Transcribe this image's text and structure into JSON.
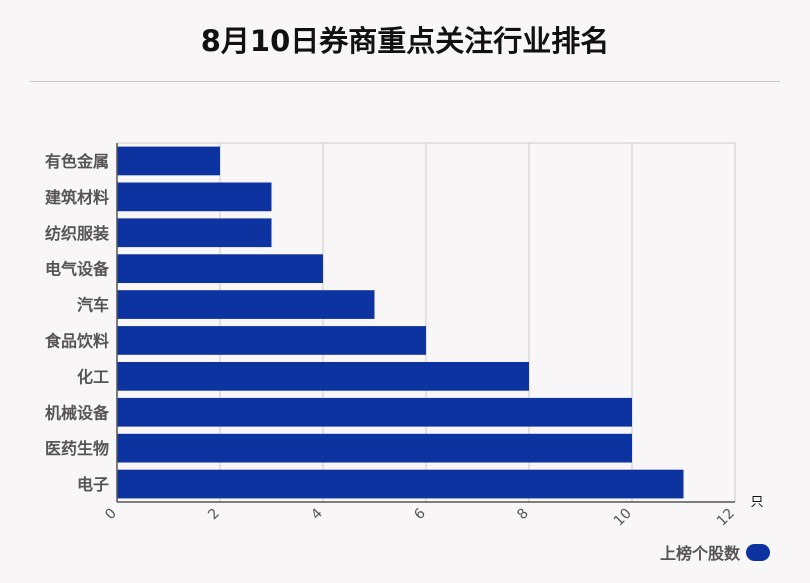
{
  "title": "8月10日券商重点关注行业排名",
  "colors": {
    "bar": "#0d33a0",
    "grid": "#cccccc",
    "axis": "#555555",
    "label": "#555555"
  },
  "chart_data": {
    "type": "bar",
    "orientation": "horizontal",
    "title": "8月10日券商重点关注行业排名",
    "categories": [
      "有色金属",
      "建筑材料",
      "纺织服装",
      "电气设备",
      "汽车",
      "食品饮料",
      "化工",
      "机械设备",
      "医药生物",
      "电子"
    ],
    "series": [
      {
        "name": "上榜个股数",
        "values": [
          2,
          3,
          3,
          4,
          5,
          6,
          8,
          10,
          10,
          11
        ]
      }
    ],
    "xlim": [
      0,
      12
    ],
    "xticks": [
      "0",
      "2",
      "4",
      "6",
      "8",
      "10",
      "12"
    ],
    "xunit": "只",
    "grid": true,
    "legend_position": "bottom-right"
  }
}
